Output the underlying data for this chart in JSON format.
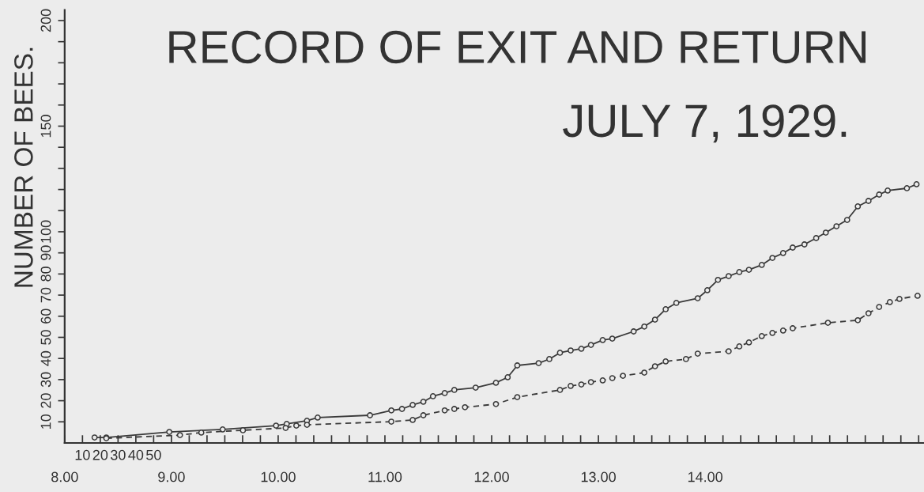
{
  "chart_data": {
    "type": "line",
    "title": "RECORD OF EXIT AND RETURN",
    "subtitle": "JULY 7, 1929.",
    "ylabel": "NUMBER OF BEES.",
    "marker": "circle",
    "grid": false,
    "xlim": [
      8,
      16.05
    ],
    "ylim": [
      0,
      205
    ],
    "x2lim": [
      0,
      483
    ],
    "x2ticks": [
      10,
      20,
      30,
      40,
      50
    ],
    "xticks": [
      {
        "value": 8,
        "label": "8.00"
      },
      {
        "value": 9,
        "label": "9.00"
      },
      {
        "value": 9.1667,
        "label": null
      },
      {
        "value": 9.3333,
        "label": null
      },
      {
        "value": 9.5,
        "label": null
      },
      {
        "value": 9.6667,
        "label": null
      },
      {
        "value": 9.8333,
        "label": null
      },
      {
        "value": 10,
        "label": "10.00"
      },
      {
        "value": 10.1667,
        "label": null
      },
      {
        "value": 10.3333,
        "label": null
      },
      {
        "value": 10.5,
        "label": null
      },
      {
        "value": 10.6667,
        "label": null
      },
      {
        "value": 10.8333,
        "label": null
      },
      {
        "value": 11,
        "label": "11.00"
      },
      {
        "value": 11.1667,
        "label": null
      },
      {
        "value": 11.3333,
        "label": null
      },
      {
        "value": 11.5,
        "label": null
      },
      {
        "value": 11.6667,
        "label": null
      },
      {
        "value": 11.8333,
        "label": null
      },
      {
        "value": 12,
        "label": "12.00"
      },
      {
        "value": 12.1667,
        "label": null
      },
      {
        "value": 12.3333,
        "label": null
      },
      {
        "value": 12.5,
        "label": null
      },
      {
        "value": 12.6667,
        "label": null
      },
      {
        "value": 12.8333,
        "label": null
      },
      {
        "value": 13,
        "label": "13.00"
      },
      {
        "value": 13.1667,
        "label": null
      },
      {
        "value": 13.3333,
        "label": null
      },
      {
        "value": 13.5,
        "label": null
      },
      {
        "value": 13.6667,
        "label": null
      },
      {
        "value": 13.8333,
        "label": null
      },
      {
        "value": 14,
        "label": "14.00"
      },
      {
        "value": 14.1667,
        "label": null
      },
      {
        "value": 14.3333,
        "label": null
      },
      {
        "value": 14.5,
        "label": null
      },
      {
        "value": 14.6667,
        "label": null
      },
      {
        "value": 14.8333,
        "label": null
      },
      {
        "value": 15,
        "label": null
      },
      {
        "value": 15.1667,
        "label": null
      },
      {
        "value": 15.3333,
        "label": null
      },
      {
        "value": 15.5,
        "label": null
      },
      {
        "value": 15.6667,
        "label": null
      },
      {
        "value": 15.8333,
        "label": null
      },
      {
        "value": 16,
        "label": null
      }
    ],
    "yticks": [
      10,
      20,
      30,
      40,
      50,
      60,
      70,
      80,
      90,
      100,
      {
        "value": 110,
        "label": null
      },
      {
        "value": 120,
        "label": null
      },
      {
        "value": 130,
        "label": null
      },
      {
        "value": 140,
        "label": null
      },
      150,
      {
        "value": 160,
        "label": null
      },
      {
        "value": 170,
        "label": null
      },
      {
        "value": 180,
        "label": null
      },
      {
        "value": 190,
        "label": null
      },
      200
    ],
    "series": [
      {
        "color": "#3a3a3a",
        "line_style": "solid",
        "x": [
          8.28,
          8.39,
          8.98,
          9.48,
          9.98,
          10.08,
          10.27,
          10.37,
          10.86,
          11.06,
          11.16,
          11.26,
          11.36,
          11.45,
          11.56,
          11.65,
          11.85,
          12.04,
          12.15,
          12.24,
          12.44,
          12.54,
          12.64,
          12.74,
          12.84,
          12.93,
          13.04,
          13.13,
          13.33,
          13.43,
          13.53,
          13.63,
          13.73,
          13.93,
          14.02,
          14.12,
          14.22,
          14.32,
          14.41,
          14.53,
          14.63,
          14.73,
          14.82,
          14.93,
          15.04,
          15.13,
          15.23,
          15.33,
          15.43,
          15.53,
          15.63,
          15.71,
          15.89,
          15.98
        ],
        "values": [
          2.6,
          2.6,
          5.2,
          6.4,
          8.2,
          9.0,
          10.5,
          12.0,
          13.1,
          15.4,
          16.1,
          18.0,
          19.5,
          22.1,
          23.6,
          25.1,
          26.2,
          28.5,
          31.1,
          36.7,
          37.8,
          39.7,
          42.7,
          43.8,
          44.6,
          46.4,
          48.7,
          49.4,
          52.8,
          55.1,
          58.4,
          63.3,
          66.3,
          68.5,
          72.3,
          77.2,
          79.0,
          80.9,
          82.0,
          84.3,
          87.6,
          89.9,
          92.5,
          94.0,
          97.0,
          99.6,
          102.6,
          105.6,
          112.0,
          114.6,
          117.6,
          119.5,
          120.6,
          122.5
        ]
      },
      {
        "color": "#3a3a3a",
        "line_style": "dashed",
        "x": [
          8.39,
          9.08,
          9.28,
          9.67,
          10.07,
          10.17,
          10.27,
          11.06,
          11.26,
          11.36,
          11.56,
          11.65,
          11.75,
          12.04,
          12.24,
          12.64,
          12.74,
          12.84,
          12.93,
          13.04,
          13.13,
          13.23,
          13.43,
          13.53,
          13.63,
          13.82,
          13.93,
          14.22,
          14.32,
          14.41,
          14.53,
          14.63,
          14.73,
          14.82,
          15.15,
          15.43,
          15.53,
          15.63,
          15.73,
          15.82,
          15.99
        ],
        "values": [
          2.2,
          3.7,
          4.9,
          6.0,
          7.1,
          8.2,
          8.6,
          10.1,
          10.9,
          13.1,
          15.4,
          16.1,
          16.9,
          18.4,
          21.7,
          25.1,
          27.0,
          27.7,
          28.8,
          29.6,
          30.7,
          31.8,
          33.3,
          36.3,
          38.6,
          39.7,
          42.3,
          43.4,
          45.7,
          47.6,
          50.6,
          52.1,
          53.2,
          54.3,
          56.9,
          58.1,
          61.4,
          64.4,
          66.7,
          68.2,
          69.7
        ]
      }
    ]
  }
}
